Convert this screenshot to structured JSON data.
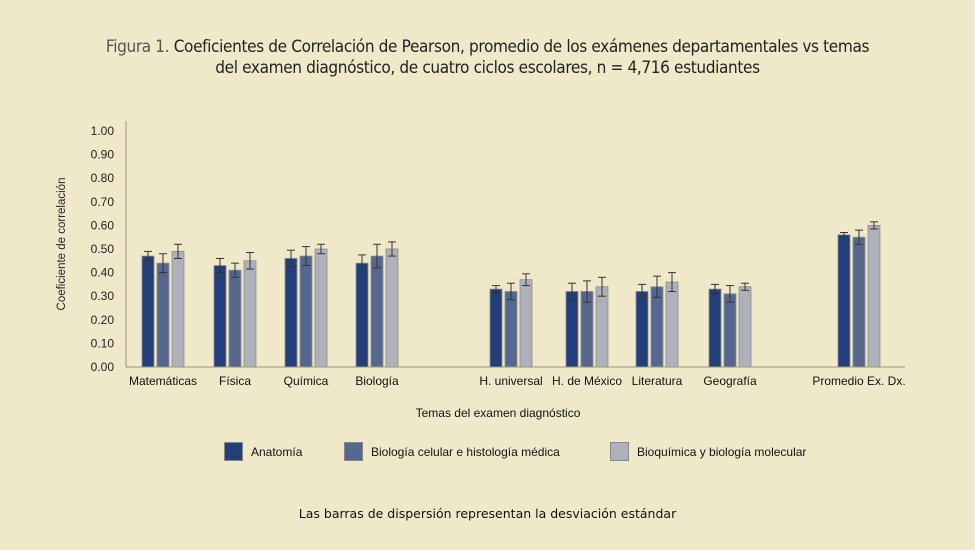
{
  "title": {
    "prefix": "Figura 1.",
    "line1": "Coeficientes de Correlación de Pearson, promedio de los exámenes departamentales vs temas",
    "line2": "del examen diagnóstico, de cuatro ciclos escolares, n = 4,716 estudiantes"
  },
  "note": "Las barras de dispersión representan la desviación estándar",
  "chart_data": {
    "type": "bar",
    "title": "Figura 1. Coeficientes de Correlación de Pearson, promedio de los exámenes departamentales vs temas del examen diagnóstico, de cuatro ciclos escolares, n = 4,716 estudiantes",
    "xlabel": "Temas del examen diagnóstico",
    "ylabel": "Coeficiente de correlación",
    "ylim": [
      0,
      1
    ],
    "yticks": [
      "0.00",
      "0.10",
      "0.20",
      "0.30",
      "0.40",
      "0.50",
      "0.60",
      "0.70",
      "0.80",
      "0.90",
      "1.00"
    ],
    "grid": false,
    "legend_position": "bottom",
    "categories": [
      "Matemáticas",
      "Física",
      "Química",
      "Biología",
      "H. universal",
      "H. de México",
      "Literatura",
      "Geografía",
      "Promedio Ex. Dx."
    ],
    "series": [
      {
        "name": "Anatomía",
        "color": "#223f7a",
        "values": [
          0.47,
          0.43,
          0.46,
          0.44,
          0.33,
          0.32,
          0.32,
          0.33,
          0.56
        ],
        "error": [
          0.02,
          0.03,
          0.035,
          0.035,
          0.015,
          0.035,
          0.03,
          0.02,
          0.01
        ]
      },
      {
        "name": "Biología celular e histología médica",
        "color": "#56678f",
        "values": [
          0.44,
          0.41,
          0.47,
          0.47,
          0.32,
          0.32,
          0.34,
          0.31,
          0.55
        ],
        "error": [
          0.04,
          0.03,
          0.04,
          0.05,
          0.035,
          0.045,
          0.045,
          0.035,
          0.03
        ]
      },
      {
        "name": "Bioquímica y biología molecular",
        "color": "#aeb0bb",
        "values": [
          0.49,
          0.45,
          0.5,
          0.5,
          0.37,
          0.34,
          0.36,
          0.34,
          0.6
        ],
        "error": [
          0.03,
          0.035,
          0.02,
          0.03,
          0.025,
          0.04,
          0.04,
          0.015,
          0.015
        ]
      }
    ]
  }
}
